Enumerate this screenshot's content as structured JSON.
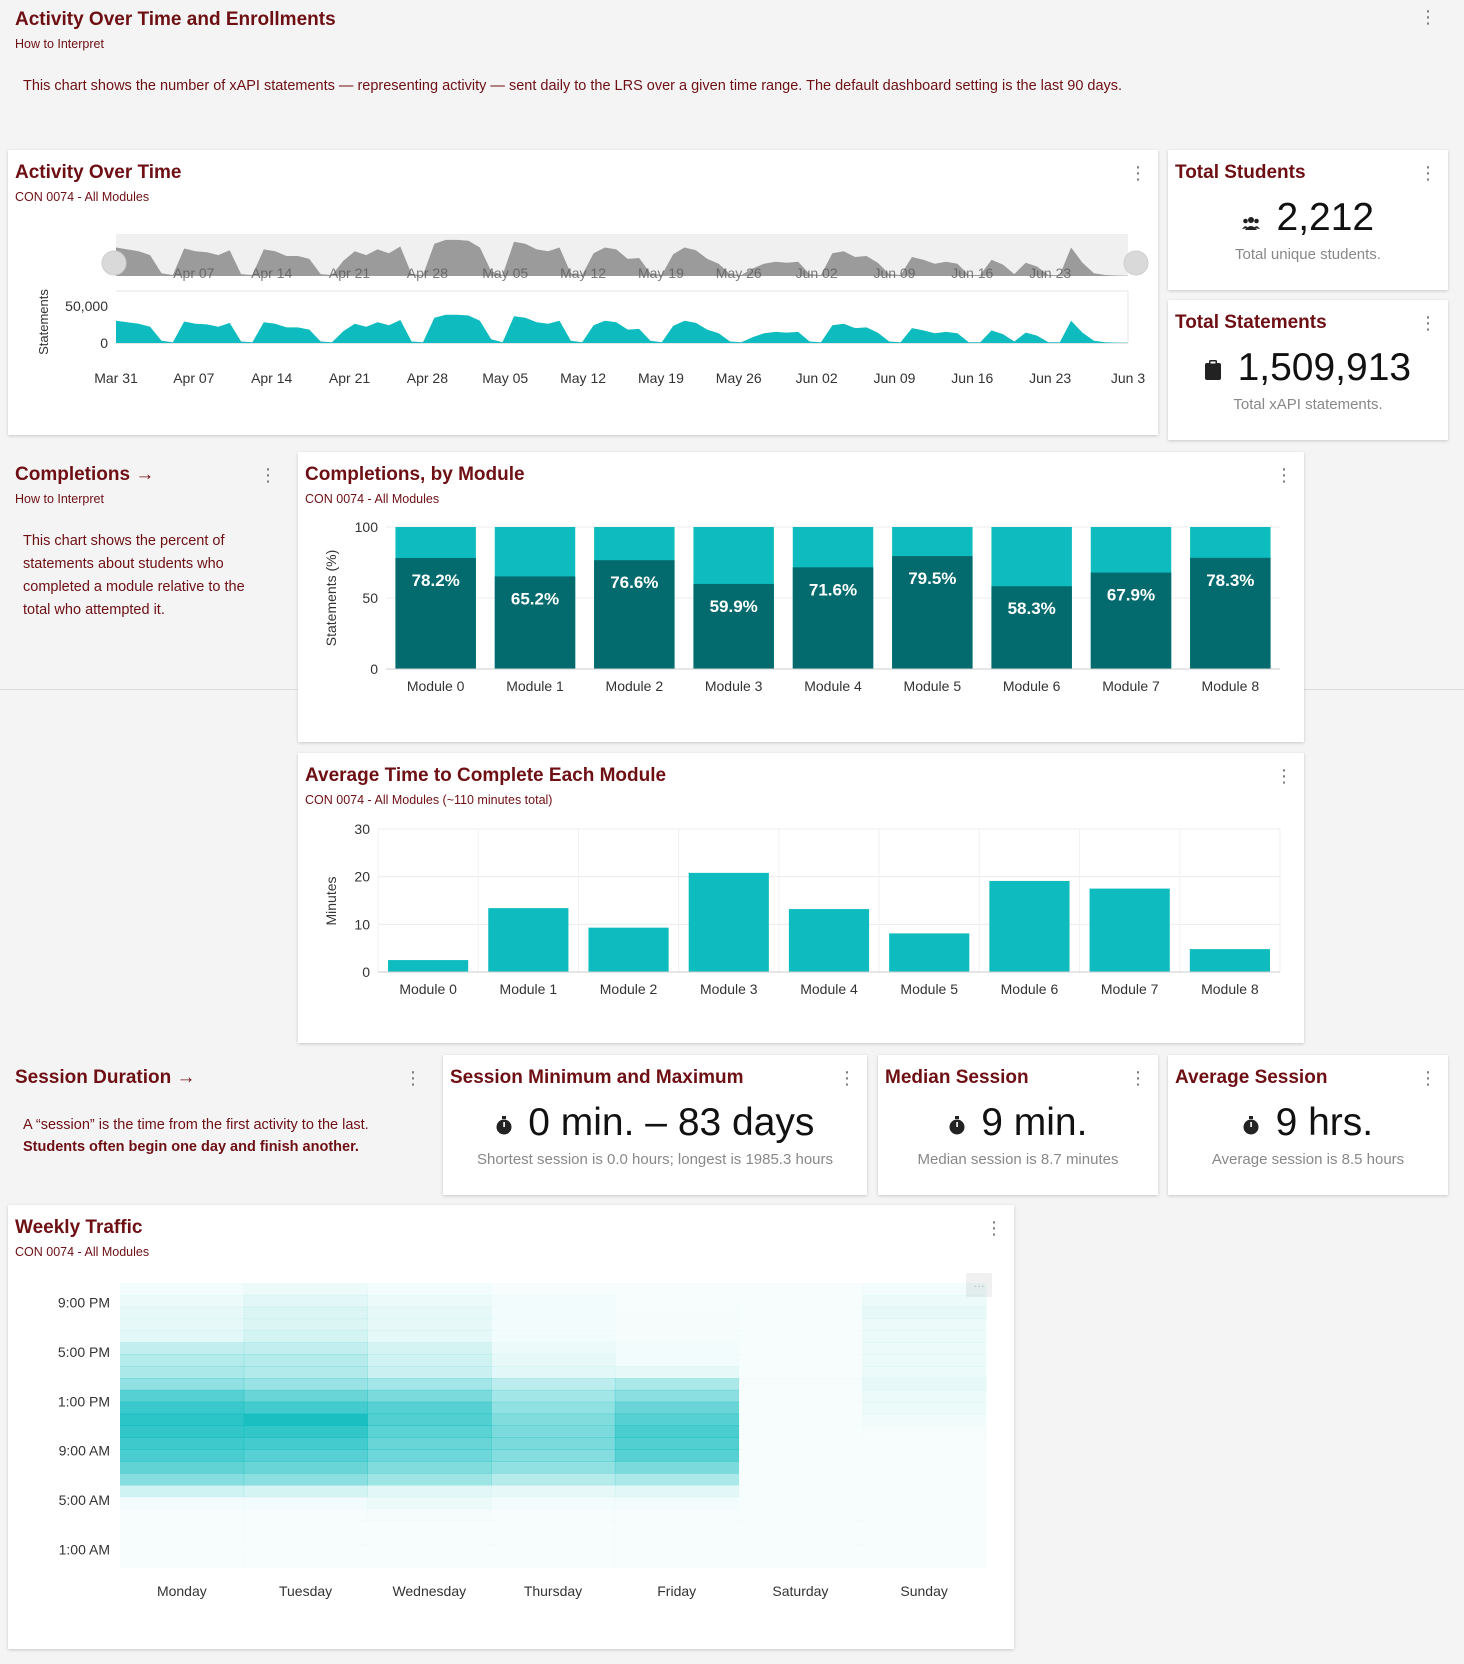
{
  "header": {
    "title": "Activity Over Time and Enrollments",
    "subtitle": "How to Interpret",
    "description": "This chart shows the number of xAPI statements — representing activity — sent daily to the LRS over a given time range. The default dashboard setting is the last 90 days."
  },
  "activity": {
    "title": "Activity Over Time",
    "subtitle": "CON 0074 - All Modules"
  },
  "total_students": {
    "title": "Total Students",
    "value": "2,212",
    "caption": "Total unique students.",
    "icon": "users-icon"
  },
  "total_statements": {
    "title": "Total Statements",
    "value": "1,509,913",
    "caption": "Total xAPI statements.",
    "icon": "clipboard-icon"
  },
  "completions_info": {
    "title": "Completions →",
    "subtitle": "How to Interpret",
    "description": "This chart shows the percent of statements about students who completed a module relative to the total who attempted it."
  },
  "completions": {
    "title": "Completions, by Module",
    "subtitle": "CON 0074 - All Modules"
  },
  "avg_time": {
    "title": "Average Time to Complete Each Module",
    "subtitle": "CON 0074 - All Modules (~110 minutes total)"
  },
  "session_info": {
    "title": "Session Duration →",
    "description": "A “session” is the time from the first activity to the last.",
    "emphasis": "Students often begin one day and finish another."
  },
  "session_minmax": {
    "title": "Session Minimum and Maximum",
    "value": "0 min. – 83 days",
    "caption": "Shortest session is 0.0 hours; longest is 1985.3 hours"
  },
  "median_session": {
    "title": "Median Session",
    "value": "9 min.",
    "caption": "Median session is 8.7 minutes"
  },
  "average_session": {
    "title": "Average Session",
    "value": "9 hrs.",
    "caption": "Average session is 8.5 hours"
  },
  "weekly": {
    "title": "Weekly Traffic",
    "subtitle": "CON 0074 - All Modules"
  },
  "colors": {
    "title": "#6e0f14",
    "teal": "#0ebcbf",
    "dark_teal": "#036b6e",
    "grey_area": "#9b9b9b"
  },
  "chart_data": [
    {
      "id": "activity",
      "type": "area",
      "title": "Activity Over Time",
      "ylabel": "Statements",
      "ylim": [
        0,
        70000
      ],
      "yticks": [
        "0",
        "50,000"
      ],
      "ytick_values": [
        0,
        50000
      ],
      "xticks": [
        "Mar 31",
        "Apr 07",
        "Apr 14",
        "Apr 21",
        "Apr 28",
        "May 05",
        "May 12",
        "May 19",
        "May 26",
        "Jun 02",
        "Jun 09",
        "Jun 16",
        "Jun 23",
        "Jun 3"
      ],
      "navigator_ticks": [
        "Apr 07",
        "Apr 14",
        "Apr 21",
        "Apr 28",
        "May 05",
        "May 12",
        "May 19",
        "May 26",
        "Jun 02",
        "Jun 09",
        "Jun 16",
        "Jun 23"
      ],
      "values": [
        30000,
        28000,
        26000,
        22000,
        3000,
        1000,
        29000,
        26000,
        25000,
        22000,
        27000,
        2000,
        1000,
        28000,
        26000,
        21000,
        21000,
        18000,
        2000,
        1000,
        16000,
        26000,
        22000,
        28000,
        24000,
        31000,
        2000,
        1000,
        34000,
        38000,
        38000,
        37000,
        30000,
        5000,
        1000,
        36000,
        34000,
        28000,
        26000,
        30000,
        3000,
        1000,
        24000,
        30000,
        28000,
        18000,
        19000,
        3000,
        1000,
        23000,
        30000,
        27000,
        18000,
        13000,
        2000,
        1000,
        8000,
        13000,
        15000,
        14000,
        15000,
        2000,
        1000,
        24000,
        26000,
        20000,
        21000,
        14000,
        2000,
        1000,
        20000,
        17000,
        13000,
        15000,
        13000,
        1000,
        1000,
        17000,
        12000,
        2000,
        14000,
        10000,
        1000,
        1000,
        30000,
        14000,
        3000,
        1000,
        500,
        300
      ]
    },
    {
      "id": "completions",
      "type": "bar",
      "title": "Completions, by Module",
      "ylabel": "Statements (%)",
      "ylim": [
        0,
        100
      ],
      "yticks": [
        0,
        50,
        100
      ],
      "categories": [
        "Module 0",
        "Module 1",
        "Module 2",
        "Module 3",
        "Module 4",
        "Module 5",
        "Module 6",
        "Module 7",
        "Module 8"
      ],
      "values": [
        78.2,
        65.2,
        76.6,
        59.9,
        71.6,
        79.5,
        58.3,
        67.9,
        78.3
      ],
      "labels": [
        "78.2%",
        "65.2%",
        "76.6%",
        "59.9%",
        "71.6%",
        "79.5%",
        "58.3%",
        "67.9%",
        "78.3%"
      ],
      "stacked_total": 100
    },
    {
      "id": "avg_time",
      "type": "bar",
      "title": "Average Time to Complete Each Module",
      "ylabel": "Minutes",
      "ylim": [
        0,
        30
      ],
      "yticks": [
        0,
        10,
        20,
        30
      ],
      "categories": [
        "Module 0",
        "Module 1",
        "Module 2",
        "Module 3",
        "Module 4",
        "Module 5",
        "Module 6",
        "Module 7",
        "Module 8"
      ],
      "values": [
        2.5,
        13.4,
        9.3,
        20.8,
        13.2,
        8.1,
        19.1,
        17.5,
        4.8
      ]
    },
    {
      "id": "weekly",
      "type": "heatmap",
      "title": "Weekly Traffic",
      "x": [
        "Monday",
        "Tuesday",
        "Wednesday",
        "Thursday",
        "Friday",
        "Saturday",
        "Sunday"
      ],
      "yticks": [
        "1:00 AM",
        "5:00 AM",
        "9:00 AM",
        "1:00 PM",
        "5:00 PM",
        "9:00 PM"
      ],
      "hours": [
        0,
        1,
        2,
        3,
        4,
        5,
        6,
        7,
        8,
        9,
        10,
        11,
        12,
        13,
        14,
        15,
        16,
        17,
        18,
        19,
        20,
        21,
        22,
        23
      ],
      "values": [
        [
          0.02,
          0.02,
          0.02,
          0.02,
          0.03,
          0.05,
          0.2,
          0.5,
          0.65,
          0.75,
          0.8,
          0.85,
          0.88,
          0.82,
          0.7,
          0.45,
          0.35,
          0.3,
          0.25,
          0.12,
          0.1,
          0.1,
          0.08,
          0.05
        ],
        [
          0.02,
          0.02,
          0.02,
          0.02,
          0.03,
          0.05,
          0.18,
          0.48,
          0.62,
          0.7,
          0.78,
          0.85,
          0.95,
          0.78,
          0.62,
          0.42,
          0.32,
          0.3,
          0.25,
          0.18,
          0.15,
          0.15,
          0.12,
          0.08
        ],
        [
          0.03,
          0.03,
          0.03,
          0.03,
          0.04,
          0.08,
          0.12,
          0.4,
          0.52,
          0.6,
          0.62,
          0.68,
          0.72,
          0.7,
          0.55,
          0.38,
          0.22,
          0.2,
          0.18,
          0.1,
          0.1,
          0.1,
          0.08,
          0.05
        ],
        [
          0.02,
          0.02,
          0.02,
          0.02,
          0.03,
          0.05,
          0.1,
          0.3,
          0.45,
          0.5,
          0.55,
          0.55,
          0.52,
          0.45,
          0.38,
          0.28,
          0.12,
          0.1,
          0.08,
          0.05,
          0.05,
          0.05,
          0.05,
          0.03
        ],
        [
          0.02,
          0.02,
          0.02,
          0.02,
          0.03,
          0.05,
          0.12,
          0.35,
          0.55,
          0.7,
          0.72,
          0.75,
          0.7,
          0.62,
          0.48,
          0.35,
          0.1,
          0.05,
          0.05,
          0.04,
          0.04,
          0.04,
          0.03,
          0.02
        ],
        [
          0.01,
          0.01,
          0.01,
          0.01,
          0.01,
          0.01,
          0.01,
          0.02,
          0.02,
          0.02,
          0.03,
          0.03,
          0.03,
          0.03,
          0.03,
          0.04,
          0.03,
          0.03,
          0.03,
          0.02,
          0.02,
          0.02,
          0.01,
          0.01
        ],
        [
          0.01,
          0.01,
          0.01,
          0.01,
          0.01,
          0.01,
          0.01,
          0.02,
          0.02,
          0.03,
          0.03,
          0.04,
          0.06,
          0.08,
          0.08,
          0.1,
          0.08,
          0.08,
          0.08,
          0.08,
          0.08,
          0.1,
          0.08,
          0.05
        ]
      ]
    }
  ]
}
